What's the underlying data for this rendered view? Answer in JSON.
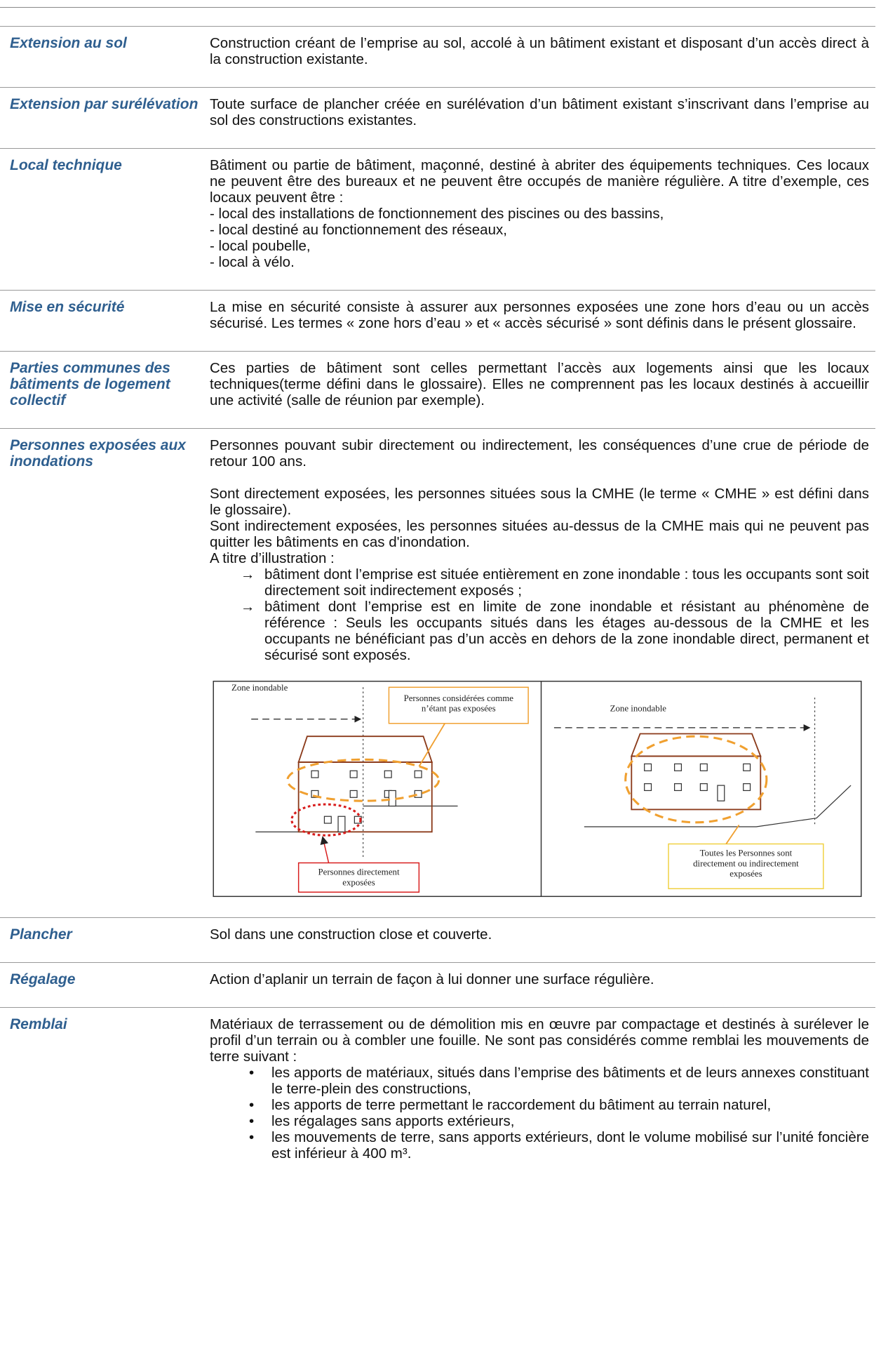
{
  "glossary": [
    {
      "term": "Extension au sol",
      "blocks": [
        {
          "lines": [
            "Construction créant de l’emprise au sol, accolé à un bâtiment existant et disposant d’un accès direct à la construction existante."
          ]
        }
      ]
    },
    {
      "term": "Extension par surélévation",
      "blocks": [
        {
          "lines": [
            "Toute surface de plancher créée en surélévation d’un bâtiment existant s’inscrivant dans l’emprise au sol des constructions existantes."
          ]
        }
      ]
    },
    {
      "term": "Local technique",
      "blocks": [
        {
          "lines": [
            "Bâtiment ou partie de bâtiment, maçonné, destiné à abriter des équipements techniques. Ces locaux ne peuvent être des bureaux et ne peuvent être occupés de manière régulière. A titre d’exemple, ces locaux peuvent être :",
            "- local des installations de fonctionnement des piscines ou des bassins,",
            "- local destiné au fonctionnement des réseaux,",
            "- local poubelle,",
            "- local à vélo."
          ]
        }
      ]
    },
    {
      "term": "Mise en sécurité",
      "blocks": [
        {
          "lines": [
            "La mise en sécurité consiste à assurer aux personnes exposées une zone hors d’eau ou un accès sécurisé. Les termes « zone hors d’eau » et « accès sécurisé » sont définis dans le présent glossaire."
          ]
        }
      ]
    },
    {
      "term": "Parties communes des bâtiments de logement collectif",
      "blocks": [
        {
          "lines": [
            "Ces parties de bâtiment sont celles permettant l’accès aux logements ainsi que les locaux techniques(terme défini dans le glossaire). Elles ne comprennent pas les locaux destinés à accueillir une activité (salle de réunion par exemple)."
          ]
        }
      ]
    },
    {
      "term": "Personnes exposées aux inondations",
      "blocks": [
        {
          "lines": [
            "Personnes pouvant subir directement ou indirectement, les conséquences d’une crue de période de retour 100 ans."
          ]
        },
        {
          "lines": [
            "Sont directement exposées, les personnes situées sous la CMHE (le terme « CMHE » est défini dans le glossaire).",
            "Sont indirectement exposées, les personnes situées au-dessus de la CMHE mais qui ne peuvent pas quitter les bâtiments en cas d'inondation.",
            "A titre d’illustration :"
          ]
        },
        {
          "arrows": [
            "bâtiment dont l’emprise est située entièrement en zone inondable : tous les occupants sont soit directement soit indirectement exposés ;",
            "bâtiment dont l’emprise est en limite de zone inondable et résistant au phénomène de référence : Seuls les occupants situés dans les étages au-dessous de la CMHE et les occupants ne bénéficiant pas d’un accès en dehors de la zone inondable direct, permanent et sécurisé sont exposés."
          ]
        },
        {
          "figure": {
            "left_zone": "Zone inondable",
            "left_not_exposed": [
              "Personnes considérées comme",
              "n’étant pas exposées"
            ],
            "left_direct": [
              "Personnes directement",
              "exposées"
            ],
            "right_zone": "Zone inondable",
            "right_all": [
              "Toutes les Personnes sont",
              "directement ou indirectement",
              "exposées"
            ]
          }
        }
      ]
    },
    {
      "term": "Plancher",
      "blocks": [
        {
          "lines": [
            "Sol dans une construction close et couverte."
          ]
        }
      ]
    },
    {
      "term": "Régalage",
      "blocks": [
        {
          "lines": [
            "Action d’aplanir un terrain de façon à lui donner une surface régulière."
          ]
        }
      ]
    },
    {
      "term": "Remblai",
      "blocks": [
        {
          "lines": [
            "Matériaux de terrassement ou de démolition mis en œuvre par compactage et destinés à surélever le profil d’un terrain ou à combler une fouille. Ne sont pas considérés comme remblai les mouvements de terre suivant :"
          ]
        },
        {
          "bullets": [
            "les apports de matériaux, situés dans l’emprise des bâtiments et de leurs annexes constituant le terre-plein des constructions,",
            "les apports de terre permettant le raccordement du bâtiment au terrain naturel,",
            "les régalages sans apports extérieurs,",
            "les mouvements de terre, sans apports extérieurs, dont le volume mobilisé sur l’unité foncière est inférieur à 400 m³."
          ]
        }
      ]
    }
  ]
}
